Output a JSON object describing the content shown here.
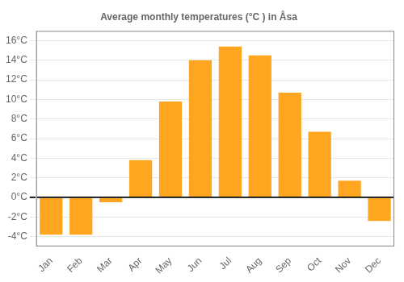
{
  "chart_data": {
    "type": "bar",
    "title": "Average monthly temperatures (°C ) in Åsa",
    "categories": [
      "Jan",
      "Feb",
      "Mar",
      "Apr",
      "May",
      "Jun",
      "Jul",
      "Aug",
      "Sep",
      "Oct",
      "Nov",
      "Dec"
    ],
    "values": [
      -3.8,
      -3.8,
      -0.5,
      3.8,
      9.8,
      14.0,
      15.4,
      14.5,
      10.7,
      6.7,
      1.7,
      -2.4
    ],
    "color": "#FFA520",
    "ylim": [
      -5,
      17
    ],
    "yticks": [
      {
        "value": -4,
        "label": "-4°C"
      },
      {
        "value": -2,
        "label": "-2°C"
      },
      {
        "value": 0,
        "label": "0°C"
      },
      {
        "value": 2,
        "label": "2°C"
      },
      {
        "value": 4,
        "label": "4°C"
      },
      {
        "value": 6,
        "label": "6°C"
      },
      {
        "value": 8,
        "label": "8°C"
      },
      {
        "value": 10,
        "label": "10°C"
      },
      {
        "value": 12,
        "label": "12°C"
      },
      {
        "value": 14,
        "label": "14°C"
      },
      {
        "value": 16,
        "label": "16°C"
      }
    ],
    "grid": true
  }
}
